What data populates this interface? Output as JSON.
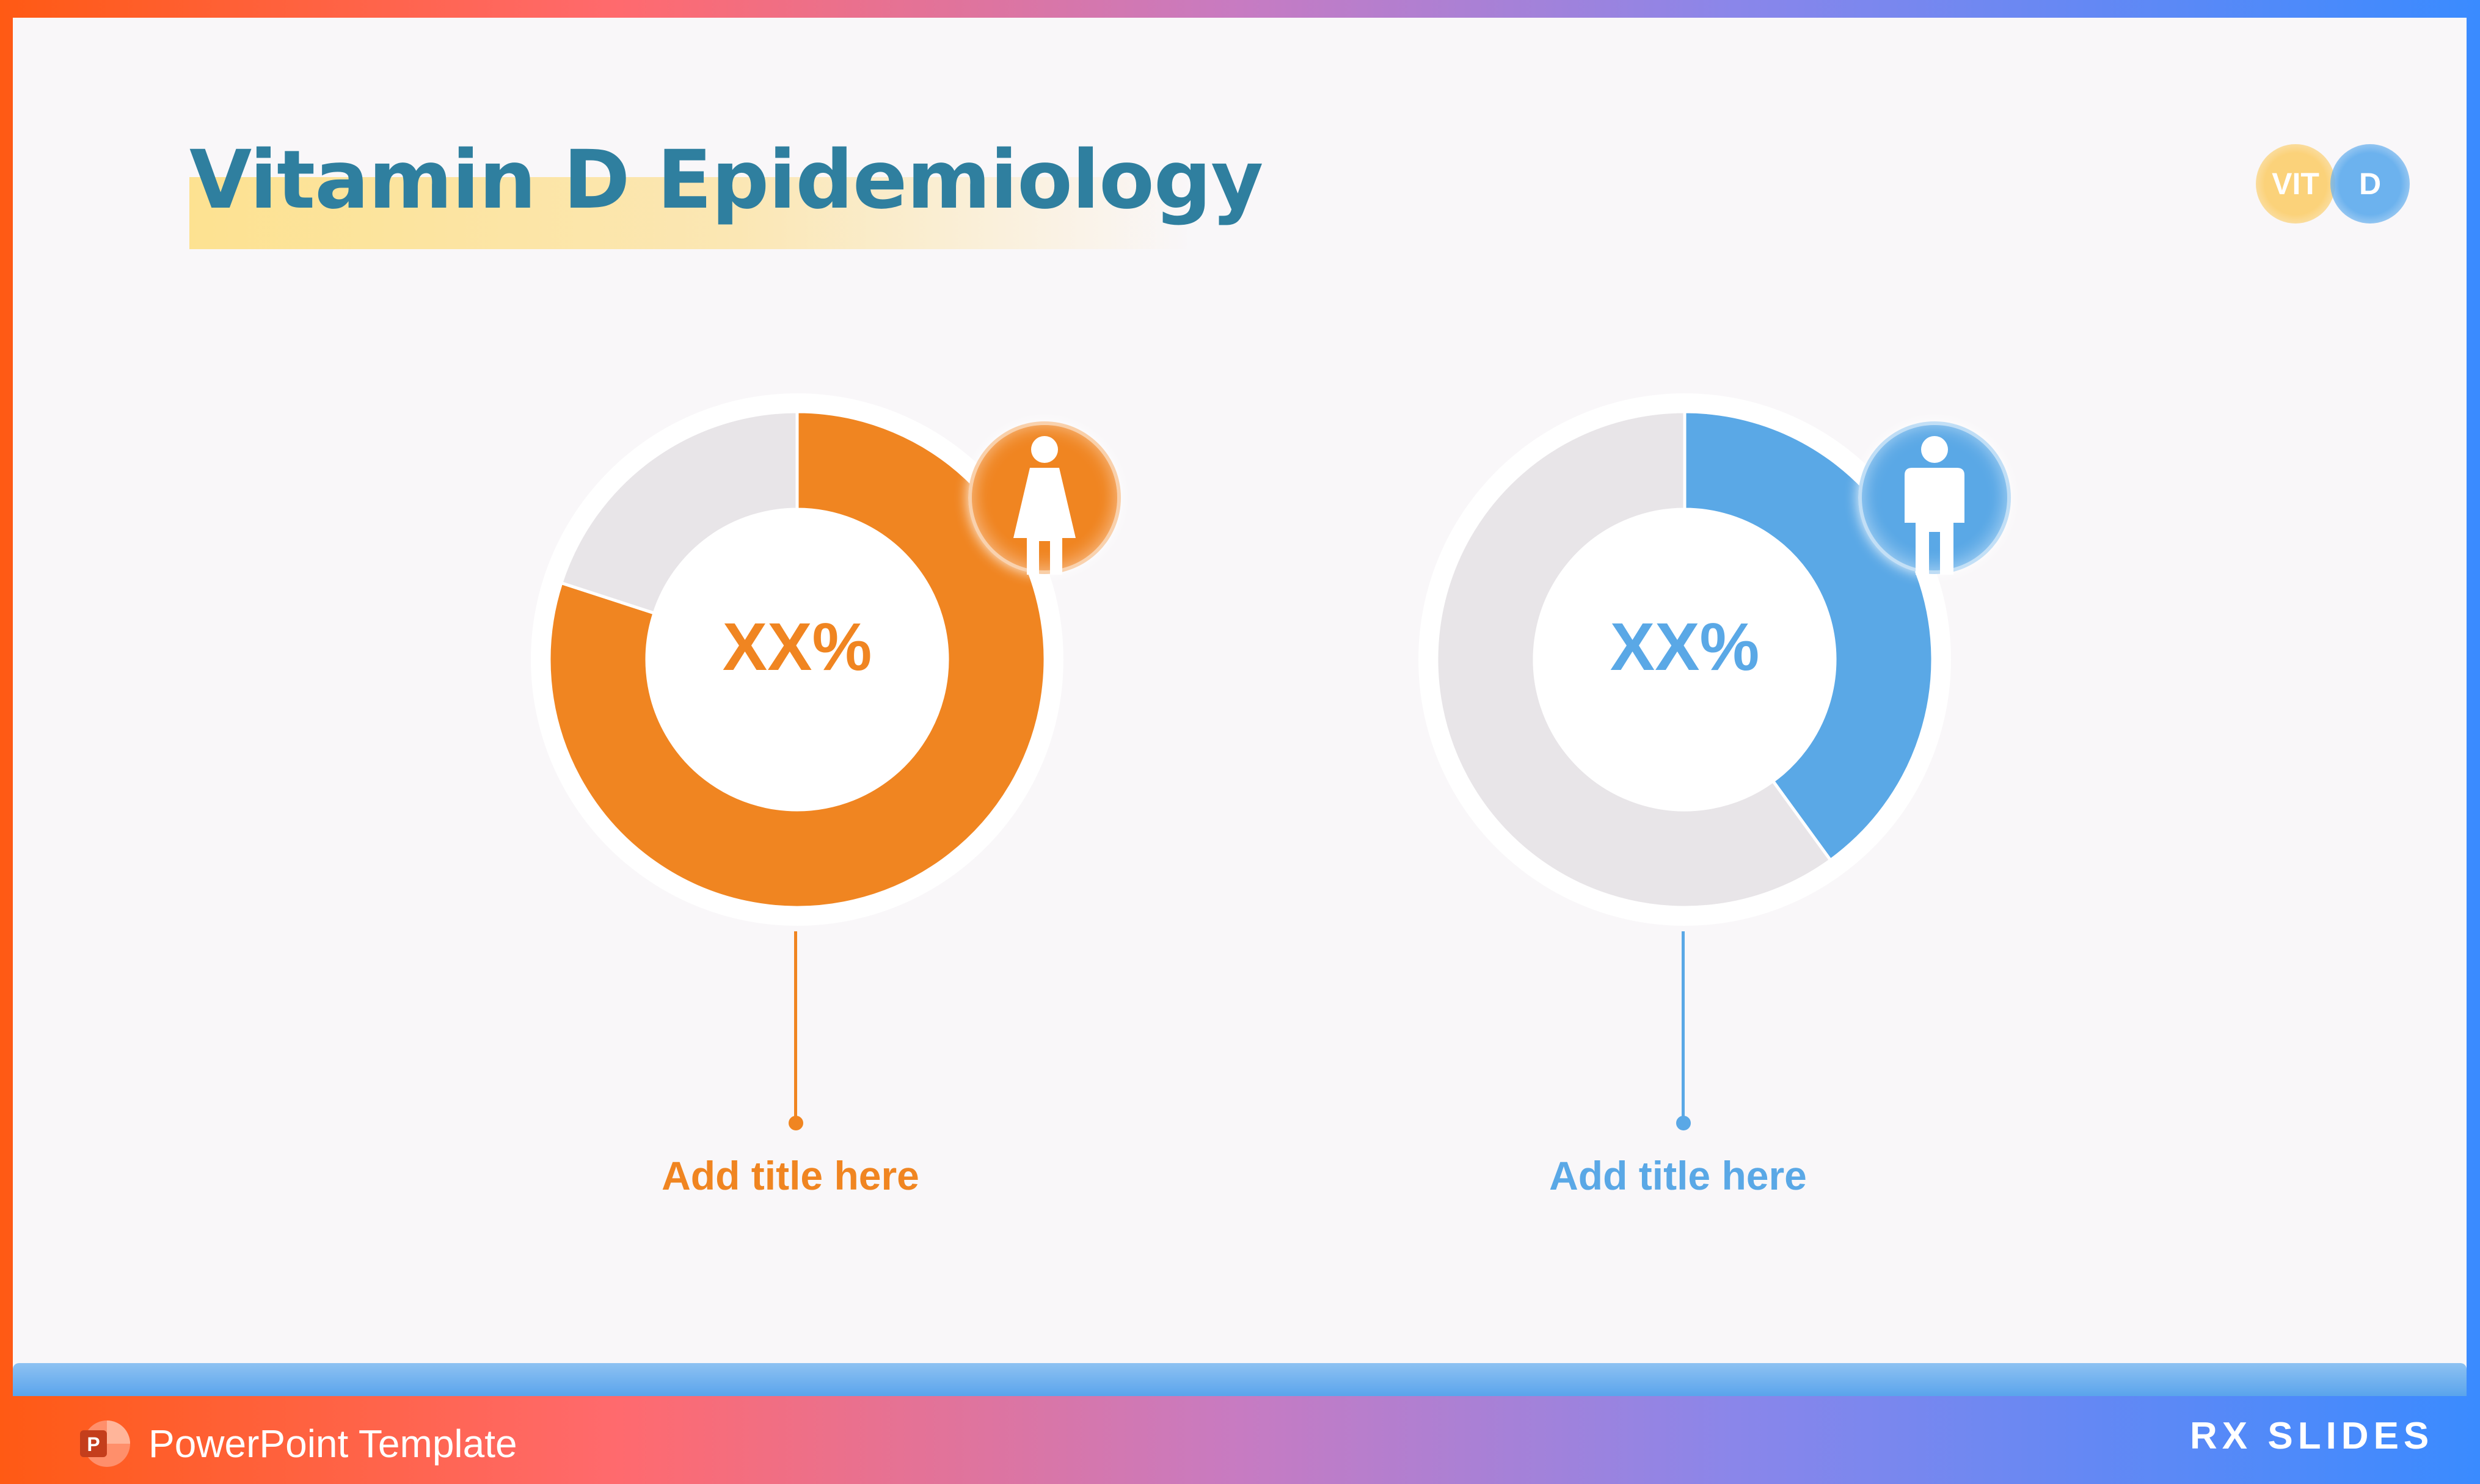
{
  "slide": {
    "title": "Vitamin D Epidemiology",
    "badges": {
      "left": "VIT",
      "right": "D"
    }
  },
  "colors": {
    "orange": "#f08521",
    "blue": "#5aa8e6",
    "remainder": "#e8e5e8",
    "title": "#2f7f9f"
  },
  "chart_data": [
    {
      "type": "pie",
      "style": "donut",
      "icon": "female-icon",
      "center_label": "XX%",
      "caption": "Add title here",
      "slices": [
        {
          "value": 80,
          "color": "#f08521"
        },
        {
          "value": 20,
          "color": "#e8e5e8"
        }
      ]
    },
    {
      "type": "pie",
      "style": "donut",
      "icon": "male-icon",
      "center_label": "XX%",
      "caption": "Add title here",
      "slices": [
        {
          "value": 40,
          "color": "#5aa8e6"
        },
        {
          "value": 60,
          "color": "#e8e5e8"
        }
      ]
    }
  ],
  "footer": {
    "label": "PowerPoint Template",
    "logo": "RX SLIDES",
    "app_icon": "powerpoint-icon"
  }
}
